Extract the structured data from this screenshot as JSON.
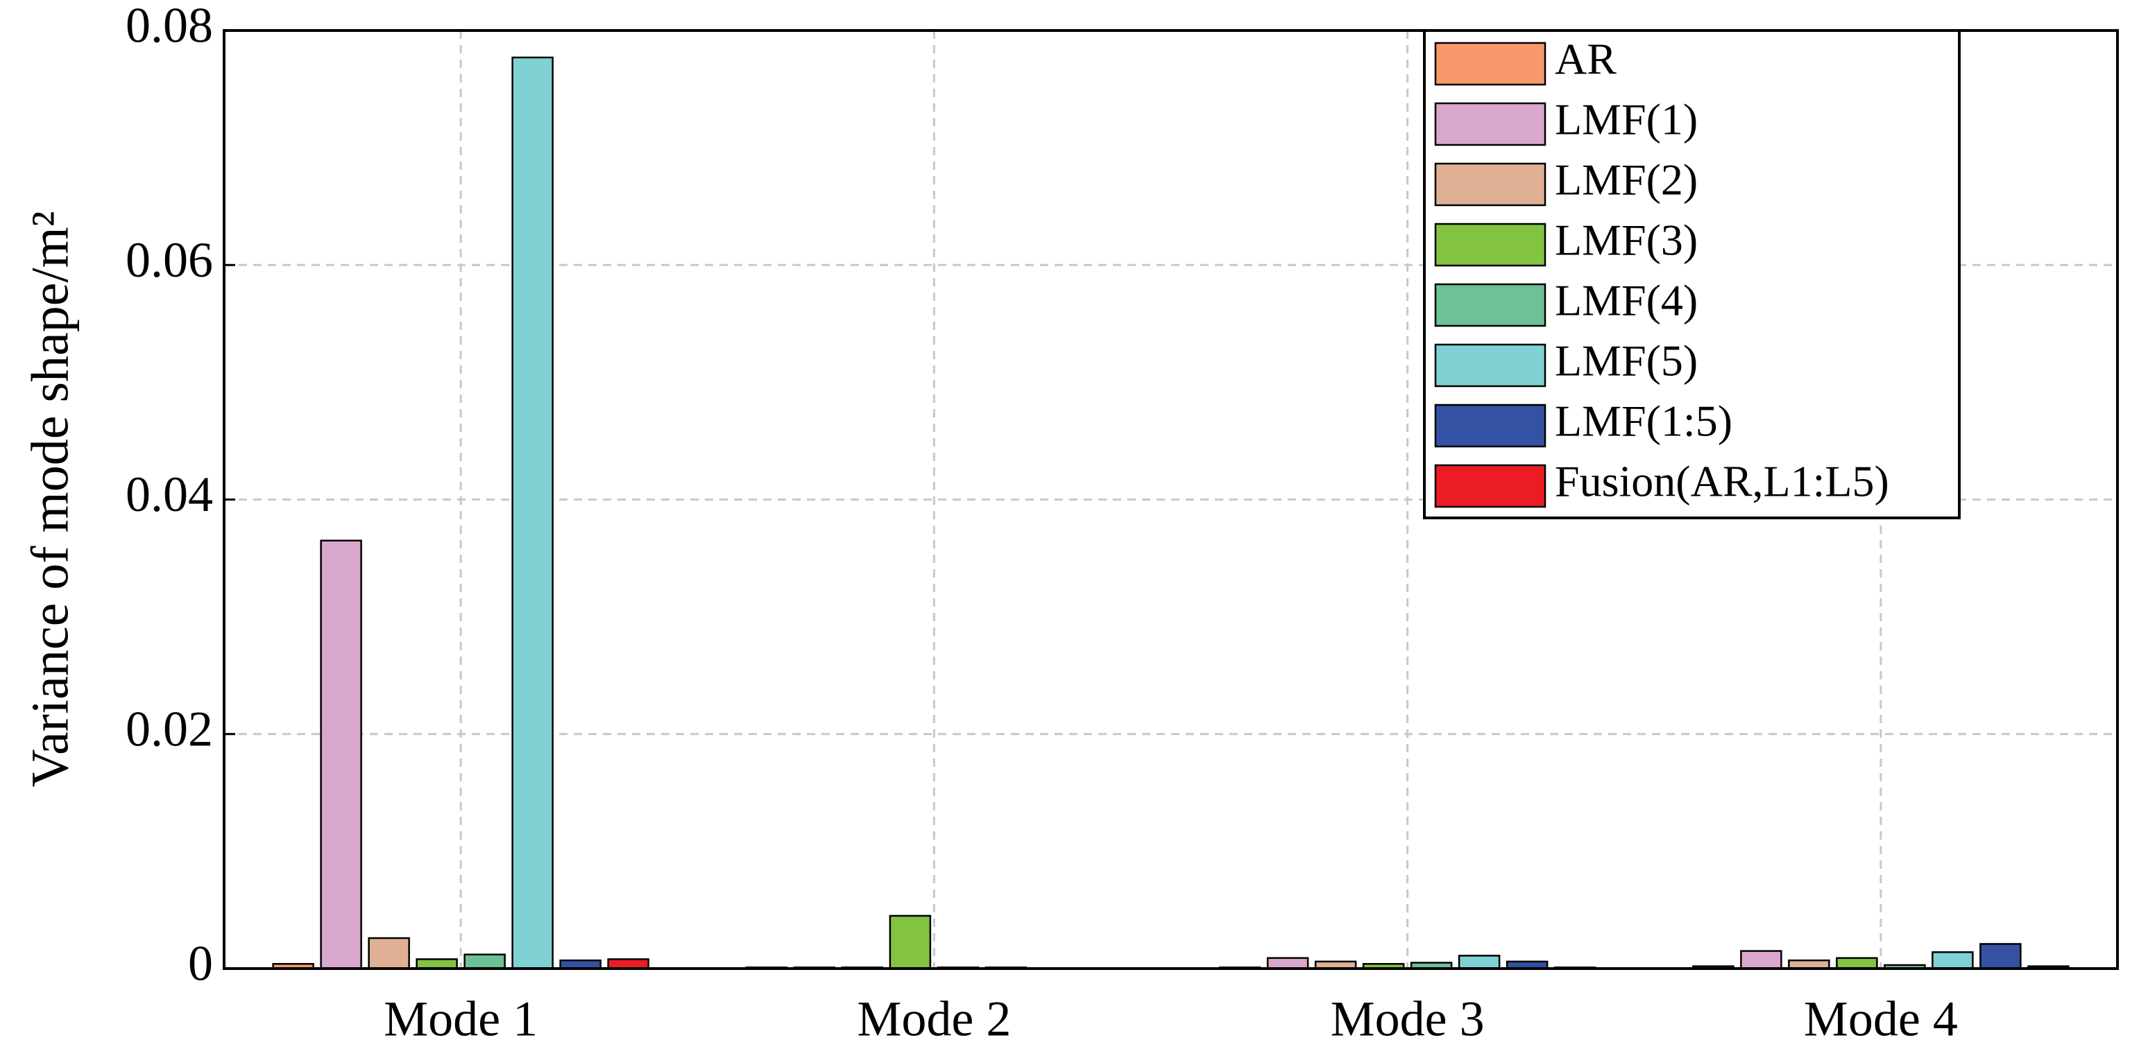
{
  "chart_data": {
    "type": "bar",
    "ylabel": "Variance of mode shape/m²",
    "categories": [
      "Mode 1",
      "Mode 2",
      "Mode 3",
      "Mode 4"
    ],
    "series": [
      {
        "name": "AR",
        "color": "#f7996b",
        "values": [
          0.0004,
          0.0001,
          0.0001,
          0.0002
        ]
      },
      {
        "name": "LMF(1)",
        "color": "#d9a6cc",
        "values": [
          0.0365,
          0.0001,
          0.0009,
          0.0015
        ]
      },
      {
        "name": "LMF(2)",
        "color": "#e0b094",
        "values": [
          0.0026,
          0.0001,
          0.0006,
          0.0007
        ]
      },
      {
        "name": "LMF(3)",
        "color": "#82c341",
        "values": [
          0.0008,
          0.0045,
          0.0004,
          0.0009
        ]
      },
      {
        "name": "LMF(4)",
        "color": "#6cc195",
        "values": [
          0.0012,
          0.0001,
          0.0005,
          0.0003
        ]
      },
      {
        "name": "LMF(5)",
        "color": "#80d1d3",
        "values": [
          0.0777,
          0.0001,
          0.0011,
          0.0014
        ]
      },
      {
        "name": "LMF(1:5)",
        "color": "#3451a3",
        "values": [
          0.0007,
          0.0,
          0.0006,
          0.0021
        ]
      },
      {
        "name": "Fusion(AR,L1:L5)",
        "color": "#ec1c24",
        "values": [
          0.0008,
          0.0,
          0.0001,
          0.0002
        ]
      }
    ],
    "ylim": [
      0,
      0.08
    ],
    "yticks": [
      0,
      0.02,
      0.04,
      0.06,
      0.08
    ],
    "grid": true,
    "legend": "upper right"
  }
}
